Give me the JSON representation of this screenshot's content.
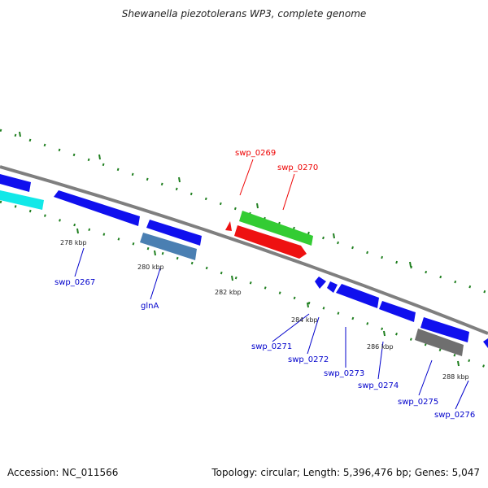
{
  "title": "Shewanella piezotolerans WP3, complete genome",
  "footer": {
    "accession": "Accession: NC_011566",
    "summary": "Topology: circular; Length: 5,396,476 bp; Genes: 5,047"
  },
  "colors": {
    "backbone": "#7f7f7f",
    "gene_blue": "#1010ee",
    "gene_cyan": "#12e8e8",
    "gene_steel": "#4a7fb2",
    "gene_green": "#33cc33",
    "gene_red": "#ee1111",
    "gene_gray": "#6f6f6f",
    "label_blue": "#0000cc",
    "label_red": "#ee0000",
    "tick_green": "#1f7f1f"
  },
  "ticks": {
    "t278": "278 kbp",
    "t280": "280 kbp",
    "t282": "282 kbp",
    "t284": "284 kbp",
    "t286": "286 kbp",
    "t288": "288 kbp"
  },
  "genes": {
    "swp_0267": "swp_0267",
    "glnA": "glnA",
    "swp_0269": "swp_0269",
    "swp_0270": "swp_0270",
    "swp_0271": "swp_0271",
    "swp_0272": "swp_0272",
    "swp_0273": "swp_0273",
    "swp_0274": "swp_0274",
    "swp_0275": "swp_0275",
    "swp_0276": "swp_0276"
  }
}
